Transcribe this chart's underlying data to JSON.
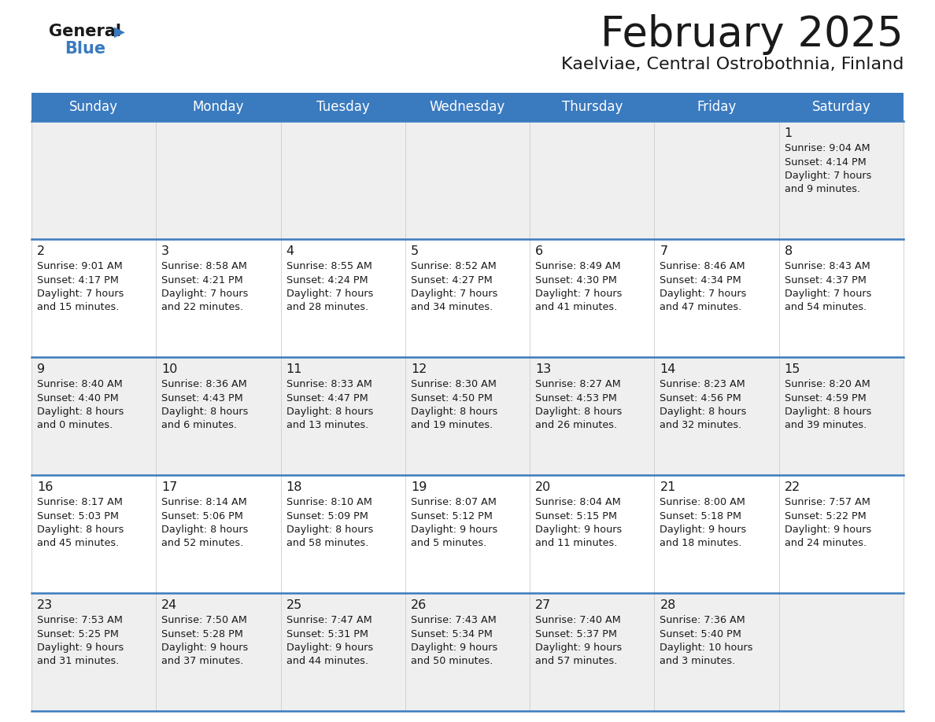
{
  "title": "February 2025",
  "subtitle": "Kaelviae, Central Ostrobothnia, Finland",
  "header_bg": "#3a7abf",
  "header_text": "#ffffff",
  "row_bg_light": "#efefef",
  "row_bg_white": "#ffffff",
  "separator_color": "#3a7abf",
  "day_names": [
    "Sunday",
    "Monday",
    "Tuesday",
    "Wednesday",
    "Thursday",
    "Friday",
    "Saturday"
  ],
  "days": [
    {
      "day": 1,
      "col": 6,
      "row": 0,
      "sunrise": "9:04 AM",
      "sunset": "4:14 PM",
      "daylight_h": "7 hours",
      "daylight_m": "and 9 minutes."
    },
    {
      "day": 2,
      "col": 0,
      "row": 1,
      "sunrise": "9:01 AM",
      "sunset": "4:17 PM",
      "daylight_h": "7 hours",
      "daylight_m": "and 15 minutes."
    },
    {
      "day": 3,
      "col": 1,
      "row": 1,
      "sunrise": "8:58 AM",
      "sunset": "4:21 PM",
      "daylight_h": "7 hours",
      "daylight_m": "and 22 minutes."
    },
    {
      "day": 4,
      "col": 2,
      "row": 1,
      "sunrise": "8:55 AM",
      "sunset": "4:24 PM",
      "daylight_h": "7 hours",
      "daylight_m": "and 28 minutes."
    },
    {
      "day": 5,
      "col": 3,
      "row": 1,
      "sunrise": "8:52 AM",
      "sunset": "4:27 PM",
      "daylight_h": "7 hours",
      "daylight_m": "and 34 minutes."
    },
    {
      "day": 6,
      "col": 4,
      "row": 1,
      "sunrise": "8:49 AM",
      "sunset": "4:30 PM",
      "daylight_h": "7 hours",
      "daylight_m": "and 41 minutes."
    },
    {
      "day": 7,
      "col": 5,
      "row": 1,
      "sunrise": "8:46 AM",
      "sunset": "4:34 PM",
      "daylight_h": "7 hours",
      "daylight_m": "and 47 minutes."
    },
    {
      "day": 8,
      "col": 6,
      "row": 1,
      "sunrise": "8:43 AM",
      "sunset": "4:37 PM",
      "daylight_h": "7 hours",
      "daylight_m": "and 54 minutes."
    },
    {
      "day": 9,
      "col": 0,
      "row": 2,
      "sunrise": "8:40 AM",
      "sunset": "4:40 PM",
      "daylight_h": "8 hours",
      "daylight_m": "and 0 minutes."
    },
    {
      "day": 10,
      "col": 1,
      "row": 2,
      "sunrise": "8:36 AM",
      "sunset": "4:43 PM",
      "daylight_h": "8 hours",
      "daylight_m": "and 6 minutes."
    },
    {
      "day": 11,
      "col": 2,
      "row": 2,
      "sunrise": "8:33 AM",
      "sunset": "4:47 PM",
      "daylight_h": "8 hours",
      "daylight_m": "and 13 minutes."
    },
    {
      "day": 12,
      "col": 3,
      "row": 2,
      "sunrise": "8:30 AM",
      "sunset": "4:50 PM",
      "daylight_h": "8 hours",
      "daylight_m": "and 19 minutes."
    },
    {
      "day": 13,
      "col": 4,
      "row": 2,
      "sunrise": "8:27 AM",
      "sunset": "4:53 PM",
      "daylight_h": "8 hours",
      "daylight_m": "and 26 minutes."
    },
    {
      "day": 14,
      "col": 5,
      "row": 2,
      "sunrise": "8:23 AM",
      "sunset": "4:56 PM",
      "daylight_h": "8 hours",
      "daylight_m": "and 32 minutes."
    },
    {
      "day": 15,
      "col": 6,
      "row": 2,
      "sunrise": "8:20 AM",
      "sunset": "4:59 PM",
      "daylight_h": "8 hours",
      "daylight_m": "and 39 minutes."
    },
    {
      "day": 16,
      "col": 0,
      "row": 3,
      "sunrise": "8:17 AM",
      "sunset": "5:03 PM",
      "daylight_h": "8 hours",
      "daylight_m": "and 45 minutes."
    },
    {
      "day": 17,
      "col": 1,
      "row": 3,
      "sunrise": "8:14 AM",
      "sunset": "5:06 PM",
      "daylight_h": "8 hours",
      "daylight_m": "and 52 minutes."
    },
    {
      "day": 18,
      "col": 2,
      "row": 3,
      "sunrise": "8:10 AM",
      "sunset": "5:09 PM",
      "daylight_h": "8 hours",
      "daylight_m": "and 58 minutes."
    },
    {
      "day": 19,
      "col": 3,
      "row": 3,
      "sunrise": "8:07 AM",
      "sunset": "5:12 PM",
      "daylight_h": "9 hours",
      "daylight_m": "and 5 minutes."
    },
    {
      "day": 20,
      "col": 4,
      "row": 3,
      "sunrise": "8:04 AM",
      "sunset": "5:15 PM",
      "daylight_h": "9 hours",
      "daylight_m": "and 11 minutes."
    },
    {
      "day": 21,
      "col": 5,
      "row": 3,
      "sunrise": "8:00 AM",
      "sunset": "5:18 PM",
      "daylight_h": "9 hours",
      "daylight_m": "and 18 minutes."
    },
    {
      "day": 22,
      "col": 6,
      "row": 3,
      "sunrise": "7:57 AM",
      "sunset": "5:22 PM",
      "daylight_h": "9 hours",
      "daylight_m": "and 24 minutes."
    },
    {
      "day": 23,
      "col": 0,
      "row": 4,
      "sunrise": "7:53 AM",
      "sunset": "5:25 PM",
      "daylight_h": "9 hours",
      "daylight_m": "and 31 minutes."
    },
    {
      "day": 24,
      "col": 1,
      "row": 4,
      "sunrise": "7:50 AM",
      "sunset": "5:28 PM",
      "daylight_h": "9 hours",
      "daylight_m": "and 37 minutes."
    },
    {
      "day": 25,
      "col": 2,
      "row": 4,
      "sunrise": "7:47 AM",
      "sunset": "5:31 PM",
      "daylight_h": "9 hours",
      "daylight_m": "and 44 minutes."
    },
    {
      "day": 26,
      "col": 3,
      "row": 4,
      "sunrise": "7:43 AM",
      "sunset": "5:34 PM",
      "daylight_h": "9 hours",
      "daylight_m": "and 50 minutes."
    },
    {
      "day": 27,
      "col": 4,
      "row": 4,
      "sunrise": "7:40 AM",
      "sunset": "5:37 PM",
      "daylight_h": "9 hours",
      "daylight_m": "and 57 minutes."
    },
    {
      "day": 28,
      "col": 5,
      "row": 4,
      "sunrise": "7:36 AM",
      "sunset": "5:40 PM",
      "daylight_h": "10 hours",
      "daylight_m": "and 3 minutes."
    }
  ]
}
